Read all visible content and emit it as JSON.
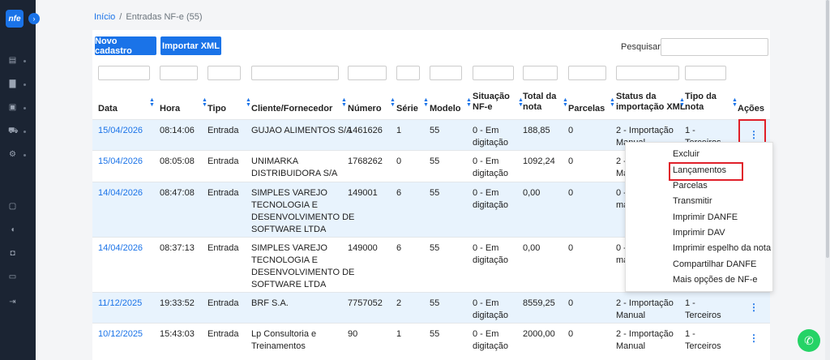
{
  "sidebar": {
    "logo": "nfe",
    "expand_icon": "chevron-right-icon",
    "items": [
      {
        "icon": "list-icon",
        "glyph": "▤"
      },
      {
        "icon": "bar-chart-icon",
        "glyph": "▇"
      },
      {
        "icon": "folder-icon",
        "glyph": "▣"
      },
      {
        "icon": "cart-icon",
        "glyph": "⛟"
      },
      {
        "icon": "gear-icon",
        "glyph": "⚙"
      },
      {
        "icon": "chat-icon",
        "glyph": "▢"
      },
      {
        "icon": "mic-icon",
        "glyph": "◖"
      },
      {
        "icon": "lock-icon",
        "glyph": "◘"
      },
      {
        "icon": "monitor-icon",
        "glyph": "▭"
      },
      {
        "icon": "logout-icon",
        "glyph": "⇥"
      }
    ]
  },
  "breadcrumb": {
    "home": "Início",
    "separator": "/",
    "current": "Entradas NF-e (55)"
  },
  "toolbar": {
    "new_label": "Novo cadastro",
    "import_label": "Importar XML",
    "search_label": "Pesquisar",
    "search_value": ""
  },
  "table": {
    "columns": [
      {
        "label1": "Data",
        "label2": "",
        "sortable": true
      },
      {
        "label1": "Hora",
        "label2": "",
        "sortable": true
      },
      {
        "label1": "Tipo",
        "label2": "",
        "sortable": true
      },
      {
        "label1": "Cliente/Fornecedor",
        "label2": "",
        "sortable": true
      },
      {
        "label1": "Número",
        "label2": "",
        "sortable": true
      },
      {
        "label1": "Série",
        "label2": "",
        "sortable": true
      },
      {
        "label1": "Modelo",
        "label2": "",
        "sortable": true
      },
      {
        "label1": "Situação",
        "label2": "NF-e",
        "sortable": true
      },
      {
        "label1": "Total da",
        "label2": "nota",
        "sortable": true
      },
      {
        "label1": "Parcelas",
        "label2": "",
        "sortable": true
      },
      {
        "label1": "Status da",
        "label2": "importação XML",
        "sortable": true
      },
      {
        "label1": "Tipo da",
        "label2": "nota",
        "sortable": true
      },
      {
        "label1": "Ações",
        "label2": "",
        "sortable": false
      }
    ],
    "rows": [
      {
        "data": "15/04/2026",
        "hora": "08:14:06",
        "tipo": "Entrada",
        "cliente": [
          "GUJAO ALIMENTOS S/A"
        ],
        "numero": "1461626",
        "serie": "1",
        "modelo": "55",
        "situacao": [
          "0 - Em",
          "digitação"
        ],
        "total": "188,85",
        "parcelas": "0",
        "status": [
          "2 - Importação",
          "Manual"
        ],
        "tipo_nota": [
          "1 -",
          "Terceiros"
        ]
      },
      {
        "data": "15/04/2026",
        "hora": "08:05:08",
        "tipo": "Entrada",
        "cliente": [
          "UNIMARKA",
          "DISTRIBUIDORA S/A"
        ],
        "numero": "1768262",
        "serie": "0",
        "modelo": "55",
        "situacao": [
          "0 - Em",
          "digitação"
        ],
        "total": "1092,24",
        "parcelas": "0",
        "status": [
          "2 - Importaç",
          "Manual"
        ],
        "tipo_nota": []
      },
      {
        "data": "14/04/2026",
        "hora": "08:47:08",
        "tipo": "Entrada",
        "cliente": [
          "SIMPLES VAREJO",
          "TECNOLOGIA E",
          "DESENVOLVIMENTO DE",
          "SOFTWARE LTDA"
        ],
        "numero": "149001",
        "serie": "6",
        "modelo": "55",
        "situacao": [
          "0 - Em",
          "digitação"
        ],
        "total": "0,00",
        "parcelas": "0",
        "status": [
          "0 - Digitada",
          "manualment"
        ],
        "tipo_nota": []
      },
      {
        "data": "14/04/2026",
        "hora": "08:37:13",
        "tipo": "Entrada",
        "cliente": [
          "SIMPLES VAREJO",
          "TECNOLOGIA E",
          "DESENVOLVIMENTO DE",
          "SOFTWARE LTDA"
        ],
        "numero": "149000",
        "serie": "6",
        "modelo": "55",
        "situacao": [
          "0 - Em",
          "digitação"
        ],
        "total": "0,00",
        "parcelas": "0",
        "status": [
          "0 - Digitada",
          "manualment"
        ],
        "tipo_nota": []
      },
      {
        "data": "11/12/2025",
        "hora": "19:33:52",
        "tipo": "Entrada",
        "cliente": [
          "BRF S.A."
        ],
        "numero": "7757052",
        "serie": "2",
        "modelo": "55",
        "situacao": [
          "0 - Em",
          "digitação"
        ],
        "total": "8559,25",
        "parcelas": "0",
        "status": [
          "2 - Importação",
          "Manual"
        ],
        "tipo_nota": [
          "1 -",
          "Terceiros"
        ]
      },
      {
        "data": "10/12/2025",
        "hora": "15:43:03",
        "tipo": "Entrada",
        "cliente": [
          "Lp Consultoria e",
          "Treinamentos"
        ],
        "numero": "90",
        "serie": "1",
        "modelo": "55",
        "situacao": [
          "0 - Em",
          "digitação"
        ],
        "total": "2000,00",
        "parcelas": "0",
        "status": [
          "2 - Importação",
          "Manual"
        ],
        "tipo_nota": [
          "1 -",
          "Terceiros"
        ]
      }
    ],
    "action_icon": "kebab-menu-icon"
  },
  "action_menu": {
    "items": [
      "Excluir",
      "Lançamentos",
      "Parcelas",
      "Transmitir",
      "Imprimir DANFE",
      "Imprimir DAV",
      "Imprimir espelho da nota",
      "Compartilhar DANFE",
      "Mais opções de NF-e"
    ],
    "highlighted": "Lançamentos"
  },
  "whatsapp": {
    "icon": "whatsapp-icon"
  },
  "colors": {
    "accent": "#1a73e8",
    "sidebar": "#1b2433",
    "row_alt": "#e8f3fd",
    "highlight_box": "#e0202a",
    "whatsapp": "#25d366"
  }
}
